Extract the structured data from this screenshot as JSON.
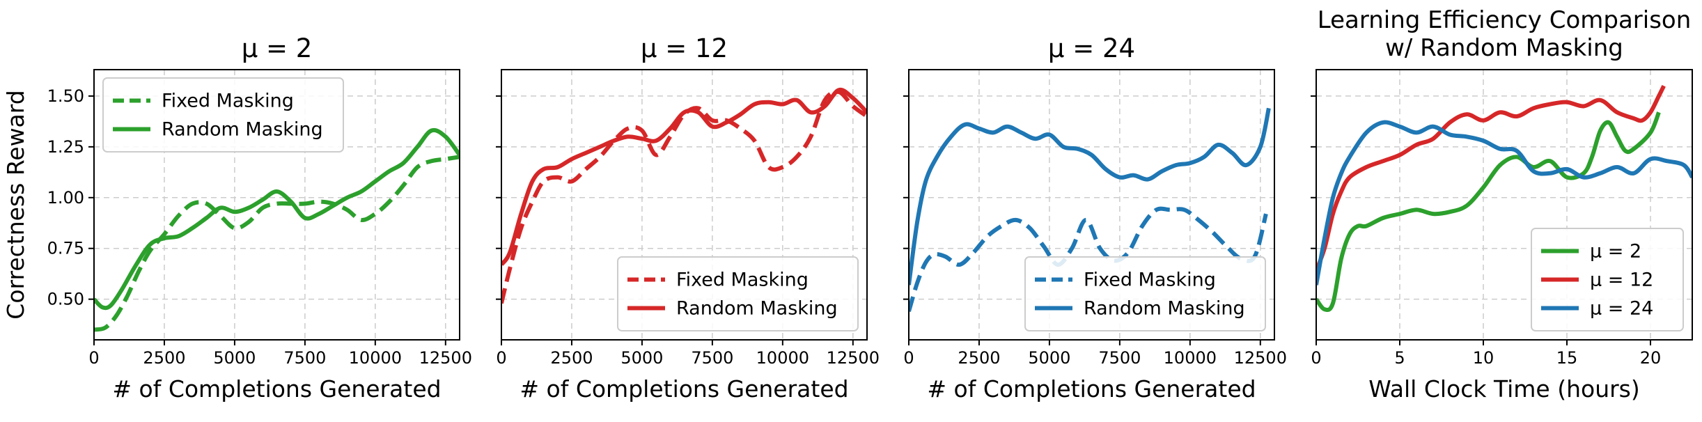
{
  "chart_data": [
    {
      "type": "line",
      "title": "μ = 2",
      "xlabel": "# of Completions Generated",
      "ylabel": "Correctness Reward",
      "xlim": [
        0,
        13000
      ],
      "ylim": [
        0.3,
        1.63
      ],
      "xticks": [
        0,
        2500,
        5000,
        7500,
        10000,
        12500
      ],
      "yticks": [
        0.5,
        0.75,
        1.0,
        1.25,
        1.5
      ],
      "ytick_labels": [
        "0.50",
        "0.75",
        "1.00",
        "1.25",
        "1.50"
      ],
      "show_ytick_labels": true,
      "grid": true,
      "legend": "top-left",
      "series": [
        {
          "name": "Fixed Masking",
          "color": "#2ca02c",
          "style": "dashed",
          "x": [
            0,
            400,
            800,
            1200,
            1600,
            2000,
            2500,
            3000,
            3500,
            4000,
            4500,
            5000,
            5500,
            6000,
            6500,
            7000,
            7500,
            8000,
            8500,
            9000,
            9500,
            10000,
            10500,
            11000,
            11500,
            12000,
            12500,
            13000
          ],
          "y": [
            0.35,
            0.36,
            0.42,
            0.52,
            0.64,
            0.74,
            0.82,
            0.91,
            0.97,
            0.97,
            0.91,
            0.85,
            0.88,
            0.95,
            0.97,
            0.97,
            0.97,
            0.98,
            0.97,
            0.94,
            0.89,
            0.92,
            0.98,
            1.06,
            1.15,
            1.18,
            1.19,
            1.2
          ]
        },
        {
          "name": "Random Masking",
          "color": "#2ca02c",
          "style": "solid",
          "x": [
            0,
            300,
            600,
            1000,
            1500,
            2000,
            2500,
            3000,
            3500,
            4000,
            4500,
            5000,
            5500,
            6000,
            6500,
            7000,
            7500,
            8000,
            8500,
            9000,
            9500,
            10000,
            10500,
            11000,
            11500,
            12000,
            12500,
            13000
          ],
          "y": [
            0.5,
            0.46,
            0.47,
            0.55,
            0.67,
            0.77,
            0.8,
            0.81,
            0.85,
            0.9,
            0.95,
            0.93,
            0.95,
            0.99,
            1.03,
            0.98,
            0.9,
            0.92,
            0.96,
            1.0,
            1.03,
            1.08,
            1.13,
            1.17,
            1.25,
            1.33,
            1.3,
            1.21
          ]
        }
      ]
    },
    {
      "type": "line",
      "title": "μ = 12",
      "xlabel": "# of Completions Generated",
      "ylabel": "",
      "xlim": [
        0,
        13000
      ],
      "ylim": [
        0.3,
        1.63
      ],
      "xticks": [
        0,
        2500,
        5000,
        7500,
        10000,
        12500
      ],
      "yticks": [
        0.5,
        0.75,
        1.0,
        1.25,
        1.5
      ],
      "ytick_labels": [
        "0.50",
        "0.75",
        "1.00",
        "1.25",
        "1.50"
      ],
      "show_ytick_labels": false,
      "grid": true,
      "legend": "bottom-right",
      "series": [
        {
          "name": "Fixed Masking",
          "color": "#d62728",
          "style": "dashed",
          "x": [
            0,
            300,
            700,
            1100,
            1500,
            2000,
            2500,
            3000,
            3500,
            4000,
            4500,
            5000,
            5500,
            6000,
            6500,
            7000,
            7500,
            8000,
            8500,
            9000,
            9500,
            10000,
            10500,
            11000,
            11500,
            12000,
            12500,
            13000
          ],
          "y": [
            0.48,
            0.65,
            0.85,
            0.98,
            1.08,
            1.1,
            1.08,
            1.14,
            1.2,
            1.28,
            1.34,
            1.33,
            1.21,
            1.3,
            1.41,
            1.44,
            1.38,
            1.38,
            1.34,
            1.28,
            1.15,
            1.15,
            1.2,
            1.3,
            1.48,
            1.52,
            1.45,
            1.4
          ]
        },
        {
          "name": "Random Masking",
          "color": "#d62728",
          "style": "solid",
          "x": [
            0,
            300,
            700,
            1100,
            1500,
            2000,
            2500,
            3000,
            3500,
            4000,
            4500,
            5000,
            5500,
            6000,
            6500,
            7000,
            7500,
            8000,
            8500,
            9000,
            9500,
            10000,
            10500,
            11000,
            11500,
            12000,
            12500,
            13000
          ],
          "y": [
            0.67,
            0.73,
            0.92,
            1.08,
            1.14,
            1.15,
            1.19,
            1.22,
            1.25,
            1.28,
            1.3,
            1.29,
            1.28,
            1.34,
            1.42,
            1.42,
            1.35,
            1.37,
            1.41,
            1.46,
            1.47,
            1.46,
            1.48,
            1.42,
            1.45,
            1.53,
            1.49,
            1.42
          ]
        }
      ]
    },
    {
      "type": "line",
      "title": "μ = 24",
      "xlabel": "# of Completions Generated",
      "ylabel": "",
      "xlim": [
        0,
        13000
      ],
      "ylim": [
        0.3,
        1.63
      ],
      "xticks": [
        0,
        2500,
        5000,
        7500,
        10000,
        12500
      ],
      "yticks": [
        0.5,
        0.75,
        1.0,
        1.25,
        1.5
      ],
      "ytick_labels": [
        "0.50",
        "0.75",
        "1.00",
        "1.25",
        "1.50"
      ],
      "show_ytick_labels": false,
      "grid": true,
      "legend": "bottom-right",
      "series": [
        {
          "name": "Fixed Masking",
          "color": "#1f77b4",
          "style": "dashed",
          "x": [
            0,
            300,
            600,
            900,
            1300,
            1800,
            2300,
            2800,
            3300,
            3800,
            4300,
            4800,
            5300,
            5800,
            6300,
            6800,
            7300,
            7800,
            8300,
            8800,
            9300,
            9800,
            10300,
            10800,
            11300,
            11800,
            12300,
            12700
          ],
          "y": [
            0.44,
            0.58,
            0.68,
            0.72,
            0.71,
            0.67,
            0.73,
            0.81,
            0.86,
            0.89,
            0.85,
            0.76,
            0.67,
            0.75,
            0.89,
            0.75,
            0.69,
            0.73,
            0.86,
            0.94,
            0.94,
            0.94,
            0.89,
            0.83,
            0.76,
            0.7,
            0.71,
            0.92
          ]
        },
        {
          "name": "Random Masking",
          "color": "#1f77b4",
          "style": "solid",
          "x": [
            0,
            300,
            600,
            1000,
            1500,
            2000,
            2500,
            3000,
            3500,
            4000,
            4500,
            5000,
            5500,
            6000,
            6500,
            7000,
            7500,
            8000,
            8500,
            9000,
            9500,
            10000,
            10500,
            11000,
            11500,
            12000,
            12500,
            12800
          ],
          "y": [
            0.57,
            0.88,
            1.08,
            1.2,
            1.3,
            1.36,
            1.34,
            1.32,
            1.35,
            1.32,
            1.29,
            1.31,
            1.25,
            1.24,
            1.21,
            1.14,
            1.1,
            1.11,
            1.09,
            1.13,
            1.16,
            1.17,
            1.2,
            1.26,
            1.22,
            1.16,
            1.25,
            1.44
          ]
        }
      ]
    },
    {
      "type": "line",
      "title": "Learning Efficiency Comparison\nw/ Random Masking",
      "title_lines": [
        "Learning Efficiency Comparison",
        "w/ Random Masking"
      ],
      "xlabel": "Wall Clock Time (hours)",
      "ylabel": "",
      "xlim": [
        0,
        22.5
      ],
      "ylim": [
        0.3,
        1.63
      ],
      "xticks": [
        0,
        5,
        10,
        15,
        20
      ],
      "yticks": [
        0.5,
        0.75,
        1.0,
        1.25,
        1.5
      ],
      "ytick_labels": [
        "0.50",
        "0.75",
        "1.00",
        "1.25",
        "1.50"
      ],
      "show_ytick_labels": false,
      "grid": true,
      "legend": "bottom-right",
      "series": [
        {
          "name": "μ = 2",
          "color": "#2ca02c",
          "style": "solid",
          "x": [
            0,
            0.5,
            1,
            1.5,
            2,
            2.5,
            3,
            4,
            5,
            6,
            7,
            8,
            9,
            10,
            11,
            12,
            13,
            14,
            15,
            16,
            16.5,
            17,
            17.5,
            18,
            18.5,
            19,
            20,
            20.5
          ],
          "y": [
            0.5,
            0.45,
            0.48,
            0.7,
            0.82,
            0.86,
            0.86,
            0.9,
            0.92,
            0.94,
            0.92,
            0.93,
            0.96,
            1.05,
            1.16,
            1.2,
            1.15,
            1.18,
            1.1,
            1.12,
            1.2,
            1.33,
            1.37,
            1.3,
            1.23,
            1.24,
            1.32,
            1.42
          ]
        },
        {
          "name": "μ = 12",
          "color": "#d62728",
          "style": "solid",
          "x": [
            0,
            0.5,
            1,
            1.5,
            2,
            3,
            4,
            5,
            6,
            7,
            8,
            9,
            10,
            11,
            12,
            13,
            14,
            15,
            16,
            17,
            18,
            19,
            19.5,
            20,
            20.5,
            20.8
          ],
          "y": [
            0.64,
            0.75,
            0.92,
            1.03,
            1.1,
            1.15,
            1.18,
            1.21,
            1.26,
            1.29,
            1.37,
            1.41,
            1.38,
            1.42,
            1.4,
            1.44,
            1.46,
            1.47,
            1.45,
            1.48,
            1.42,
            1.39,
            1.38,
            1.42,
            1.5,
            1.55
          ]
        },
        {
          "name": "μ = 24",
          "color": "#1f77b4",
          "style": "solid",
          "x": [
            0,
            0.5,
            1,
            1.5,
            2,
            3,
            4,
            5,
            6,
            7,
            8,
            9,
            10,
            11,
            12,
            13,
            14,
            15,
            16,
            17,
            18,
            19,
            20,
            21,
            22,
            22.5
          ],
          "y": [
            0.57,
            0.8,
            1.0,
            1.12,
            1.2,
            1.32,
            1.37,
            1.35,
            1.32,
            1.35,
            1.31,
            1.3,
            1.28,
            1.24,
            1.23,
            1.13,
            1.12,
            1.14,
            1.1,
            1.12,
            1.15,
            1.12,
            1.19,
            1.18,
            1.16,
            1.1
          ]
        }
      ]
    }
  ]
}
